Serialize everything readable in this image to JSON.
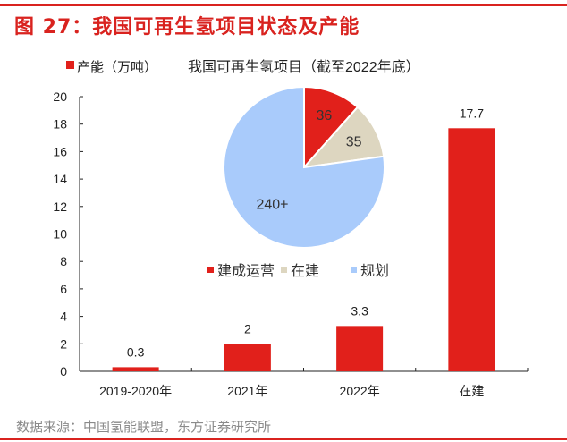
{
  "header": {
    "title": "图 27：我国可再生氢项目状态及产能"
  },
  "footer": {
    "source": "数据来源：中国氢能联盟，东方证券研究所"
  },
  "colors": {
    "accent": "#d9231f",
    "bar": "#e1201b",
    "pie_operating": "#e1201b",
    "pie_building": "#ddd6c0",
    "pie_planned": "#a9cbfb",
    "axis": "#222222"
  },
  "chart_data": [
    {
      "type": "bar",
      "legend": "产能（万吨）",
      "legend_position": "top-left",
      "categories": [
        "2019-2020年",
        "2021年",
        "2022年",
        "在建"
      ],
      "values": [
        0.3,
        2,
        3.3,
        17.7
      ],
      "value_labels": [
        "0.3",
        "2",
        "3.3",
        "17.7"
      ],
      "ylim": [
        0,
        20
      ],
      "yticks": [
        0,
        2,
        4,
        6,
        8,
        10,
        12,
        14,
        16,
        18,
        20
      ],
      "grid": false,
      "xlabel": "",
      "ylabel": ""
    },
    {
      "type": "pie",
      "title": "我国可再生氢项目（截至2022年底）",
      "slices": [
        {
          "label": "建成运营",
          "value": 36,
          "display": "36"
        },
        {
          "label": "在建",
          "value": 35,
          "display": "35"
        },
        {
          "label": "规划",
          "value": 240,
          "display": "240+"
        }
      ],
      "legend_position": "bottom"
    }
  ]
}
